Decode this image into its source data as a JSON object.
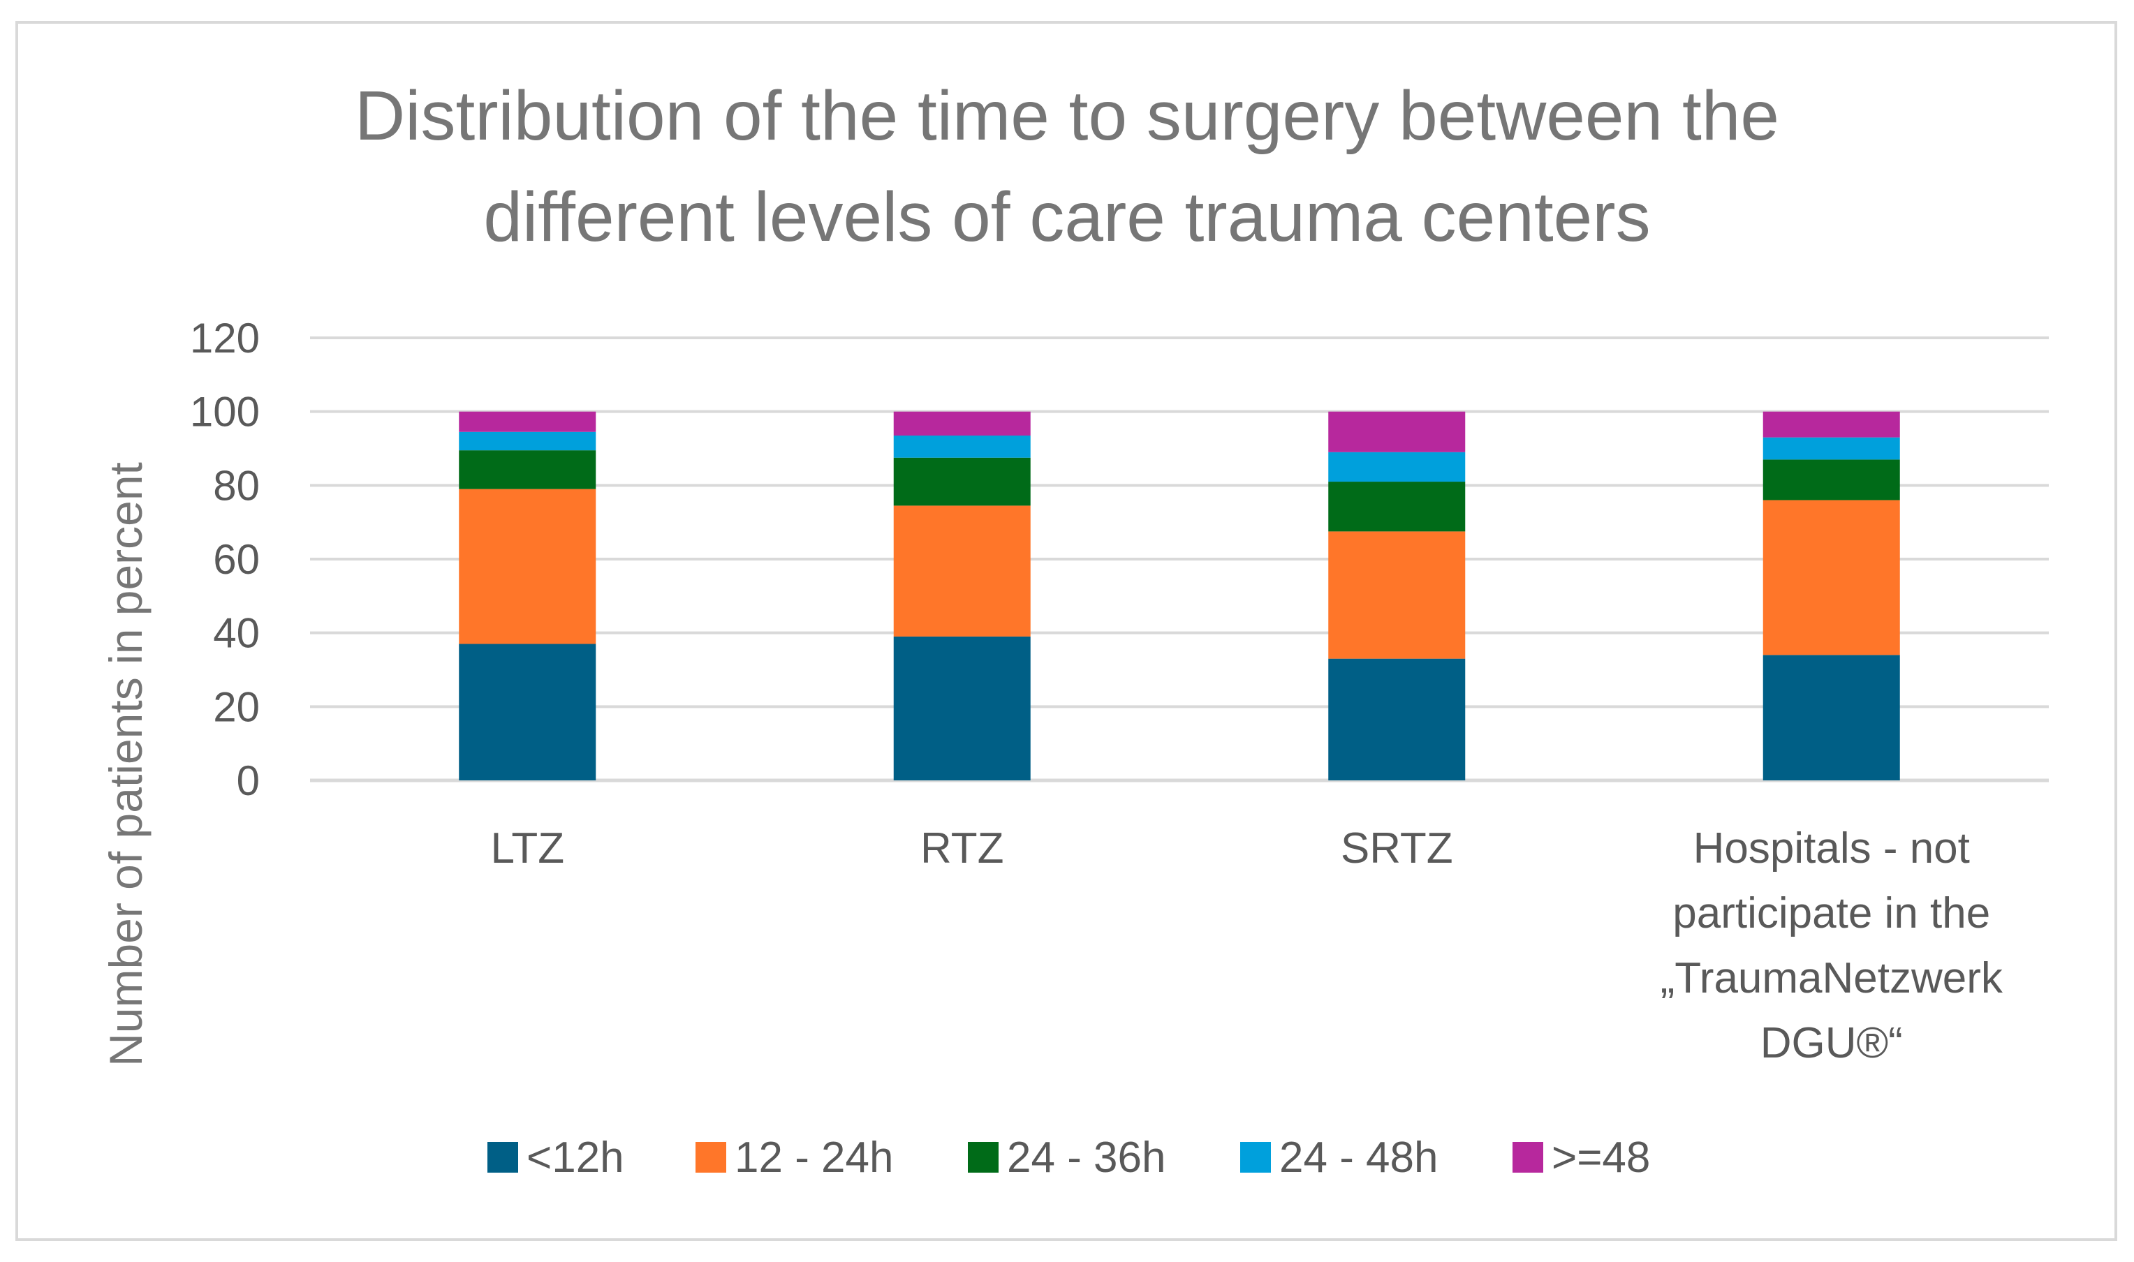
{
  "chart_data": {
    "type": "bar",
    "stacked": true,
    "title_lines": [
      "Distribution of the time to surgery between the",
      "different levels of care trauma centers"
    ],
    "xlabel": "",
    "ylabel": "Number of patients in percent",
    "ylim": [
      0,
      120
    ],
    "yticks": [
      0,
      20,
      40,
      60,
      80,
      100,
      120
    ],
    "grid": true,
    "legend_position": "bottom",
    "categories": [
      [
        "LTZ"
      ],
      [
        "RTZ"
      ],
      [
        "SRTZ"
      ],
      [
        "Hospitals - not",
        "participate in the",
        "„TraumaNetzwerk",
        "DGU®“"
      ]
    ],
    "series": [
      {
        "name": "<12h",
        "color": "#005F86",
        "values": [
          37,
          39,
          33,
          34
        ]
      },
      {
        "name": "12 - 24h",
        "color": "#FF7629",
        "values": [
          42,
          35.5,
          34.5,
          42
        ]
      },
      {
        "name": "24 - 36h",
        "color": "#006B18",
        "values": [
          10.5,
          13,
          13.5,
          11
        ]
      },
      {
        "name": "24 - 48h",
        "color": "#00A0DC",
        "values": [
          5,
          6,
          8,
          6
        ]
      },
      {
        "name": ">=48",
        "color": "#B7289D",
        "values": [
          5.5,
          6.5,
          11,
          7
        ]
      }
    ]
  }
}
